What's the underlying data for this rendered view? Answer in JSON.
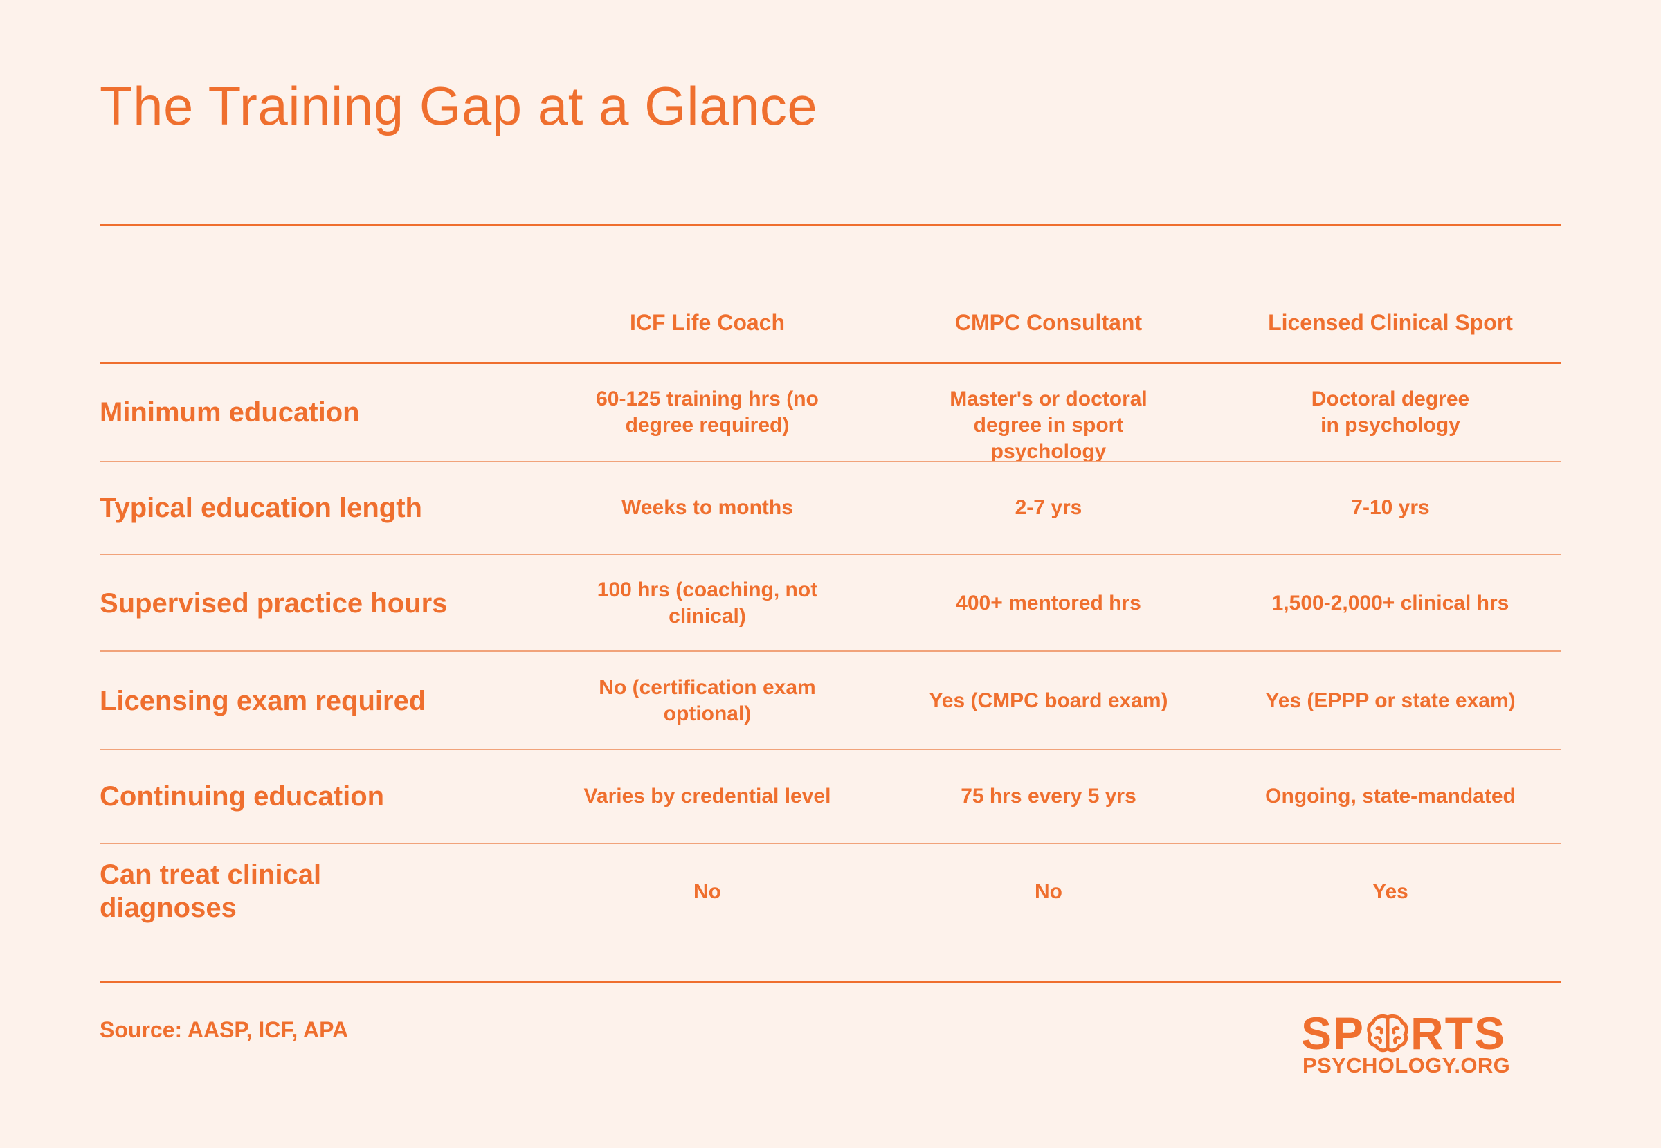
{
  "title": "The Training Gap at a Glance",
  "columns": [
    "ICF Life Coach",
    "CMPC Consultant",
    "Licensed Clinical Sport"
  ],
  "rows": [
    {
      "label": "Minimum education",
      "cells": [
        "60-125 training hrs (no degree required)",
        "Master's or doctoral degree in sport psychology",
        "Doctoral degree in psychology"
      ]
    },
    {
      "label": "Typical education length",
      "cells": [
        "Weeks to months",
        "2-7 yrs",
        "7-10 yrs"
      ]
    },
    {
      "label": "Supervised practice hours",
      "cells": [
        "100 hrs (coaching, not clinical)",
        "400+ mentored hrs",
        "1,500-2,000+ clinical hrs"
      ]
    },
    {
      "label": "Licensing exam required",
      "cells": [
        "No (certification exam optional)",
        "Yes (CMPC board exam)",
        "Yes (EPPP or state exam)"
      ]
    },
    {
      "label": "Continuing education",
      "cells": [
        "Varies by credential level",
        "75 hrs every 5 yrs",
        "Ongoing, state-mandated"
      ]
    },
    {
      "label": "Can treat clinical diagnoses",
      "cells": [
        "No",
        "No",
        "Yes"
      ]
    }
  ],
  "source": "Source: AASP, ICF, APA",
  "logo": {
    "top_left": "SP",
    "top_right": "RTS",
    "bottom": "PSYCHOLOGY.ORG",
    "icon": "brain-icon"
  },
  "colors": {
    "background": "#fdf2eb",
    "accent": "#ef6f2e"
  }
}
